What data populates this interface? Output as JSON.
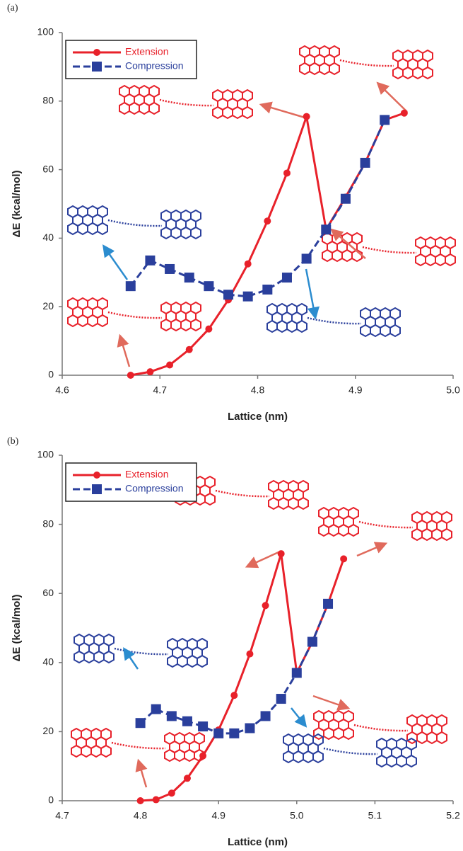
{
  "chart_data": [
    {
      "type": "line",
      "label": "(a)",
      "x_label": "Lattice (nm)",
      "y_label": "ΔE (kcal/mol)",
      "xlim": [
        4.6,
        5.0
      ],
      "xticks": [
        4.6,
        4.7,
        4.8,
        4.9,
        {
          "value": 5.0,
          "label": "5.0"
        }
      ],
      "ylim": [
        0,
        100
      ],
      "yticks": [
        0,
        20,
        40,
        60,
        80,
        100
      ],
      "legend": "upper left",
      "series": [
        {
          "name": "Extension",
          "color": "#e8212a",
          "marker": "circle",
          "dash": false,
          "x": [
            4.67,
            4.69,
            4.71,
            4.73,
            4.75,
            4.77,
            4.79,
            4.81,
            4.83,
            4.85,
            4.87,
            4.89,
            4.91,
            4.93,
            4.95
          ],
          "values": [
            0,
            1,
            3,
            7.5,
            13.5,
            22,
            32.5,
            45,
            59,
            75.5,
            42.5,
            52,
            62,
            74.5,
            76.5
          ]
        },
        {
          "name": "Compression",
          "color": "#2a3f9c",
          "marker": "square",
          "dash": true,
          "x": [
            4.67,
            4.69,
            4.71,
            4.73,
            4.75,
            4.77,
            4.79,
            4.81,
            4.83,
            4.85,
            4.87,
            4.89,
            4.91,
            4.93
          ],
          "values": [
            26,
            33.5,
            31,
            28.5,
            26,
            23.5,
            23,
            25,
            28.5,
            34,
            42.5,
            51.5,
            62,
            74.5
          ]
        }
      ]
    },
    {
      "type": "line",
      "label": "(b)",
      "x_label": "Lattice (nm)",
      "y_label": "ΔE (kcal/mol)",
      "xlim": [
        4.7,
        5.2
      ],
      "xticks": [
        4.7,
        4.8,
        4.9,
        {
          "value": 5.0,
          "label": "5.0"
        },
        5.1,
        5.2
      ],
      "ylim": [
        0,
        100
      ],
      "yticks": [
        0,
        20,
        40,
        60,
        80,
        100
      ],
      "legend": "upper left",
      "series": [
        {
          "name": "Extension",
          "color": "#e8212a",
          "marker": "circle",
          "dash": false,
          "x": [
            4.8,
            4.82,
            4.84,
            4.86,
            4.88,
            4.9,
            4.92,
            4.94,
            4.96,
            4.98,
            5.0,
            5.02,
            5.04,
            5.06
          ],
          "values": [
            0,
            0.3,
            2.2,
            6.5,
            13,
            20.5,
            30.5,
            42.5,
            56.5,
            71.5,
            37,
            46,
            57,
            70
          ]
        },
        {
          "name": "Compression",
          "color": "#2a3f9c",
          "marker": "square",
          "dash": true,
          "x": [
            4.8,
            4.82,
            4.84,
            4.86,
            4.88,
            4.9,
            4.92,
            4.94,
            4.96,
            4.98,
            5.0,
            5.02,
            5.04
          ],
          "values": [
            22.5,
            26.5,
            24.5,
            23,
            21.5,
            19.5,
            19.5,
            21,
            24.5,
            29.5,
            37,
            46,
            57
          ]
        }
      ]
    }
  ]
}
